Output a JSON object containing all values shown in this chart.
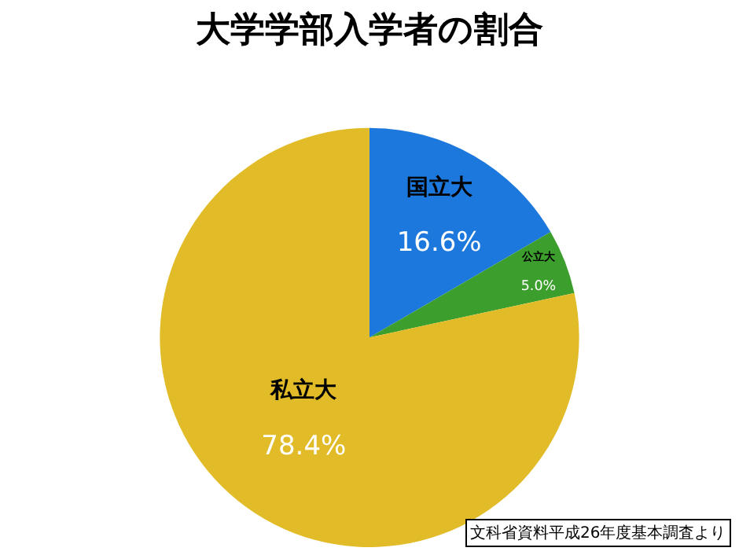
{
  "chart_data": {
    "type": "pie",
    "title": "大学学部入学者の割合",
    "categories": [
      "国立大",
      "公立大",
      "私立大"
    ],
    "values": [
      16.6,
      5.0,
      78.4
    ],
    "value_labels": [
      "16.6%",
      "5.0%",
      "78.4%"
    ],
    "colors": [
      "#1c78dc",
      "#3c9e2c",
      "#e2bb28"
    ],
    "annotations": [
      "文科省資料平成26年度基本調査より"
    ]
  }
}
